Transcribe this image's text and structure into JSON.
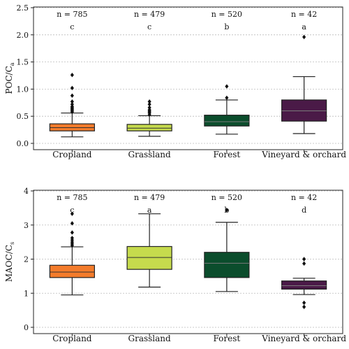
{
  "chart_data": [
    {
      "type": "box",
      "ylabel_main": "POC/C",
      "ylabel_sub": "a",
      "xlabel": "",
      "ylim": [
        0,
        2.5
      ],
      "yticks": [
        0.0,
        0.5,
        1.0,
        1.5,
        2.0,
        2.5
      ],
      "ytick_labels": [
        "0.0",
        "0.5",
        "1.0",
        "1.5",
        "2.0",
        "2.5"
      ],
      "grid": "horizontal dotted",
      "categories": [
        "Cropland",
        "Grassland",
        "Forest",
        "Vineyard & orchard"
      ],
      "n_labels": [
        "n = 785",
        "n = 479",
        "n = 520",
        "n = 42"
      ],
      "letters": [
        "c",
        "c",
        "b",
        "a"
      ],
      "colors": [
        "#f47c2c",
        "#c6db4d",
        "#0b4d2c",
        "#4a1a47"
      ],
      "boxes": [
        {
          "whisker_low": 0.12,
          "q1": 0.23,
          "median": 0.29,
          "q3": 0.36,
          "whisker_high": 0.56,
          "outliers": [
            0.58,
            0.6,
            0.62,
            0.64,
            0.66,
            0.68,
            0.72,
            0.77,
            0.88,
            1.02,
            1.26
          ]
        },
        {
          "whisker_low": 0.13,
          "q1": 0.23,
          "median": 0.28,
          "q3": 0.35,
          "whisker_high": 0.51,
          "outliers": [
            0.53,
            0.56,
            0.58,
            0.6,
            0.62,
            0.66,
            0.72,
            0.77
          ]
        },
        {
          "whisker_low": 0.17,
          "q1": 0.32,
          "median": 0.4,
          "q3": 0.52,
          "whisker_high": 0.8,
          "outliers": [
            0.84,
            1.05
          ]
        },
        {
          "whisker_low": 0.18,
          "q1": 0.41,
          "median": 0.6,
          "q3": 0.8,
          "whisker_high": 1.23,
          "outliers": [
            1.96
          ]
        }
      ]
    },
    {
      "type": "box",
      "ylabel_main": "MAOC/C",
      "ylabel_sub": "s",
      "xlabel": "",
      "ylim": [
        0,
        4
      ],
      "yticks": [
        0,
        1,
        2,
        3,
        4
      ],
      "ytick_labels": [
        "0",
        "1",
        "2",
        "3",
        "4"
      ],
      "grid": "horizontal dotted",
      "categories": [
        "Cropland",
        "Grassland",
        "Forest",
        "Vineyard & orchard"
      ],
      "n_labels": [
        "n = 785",
        "n = 479",
        "n = 520",
        "n = 42"
      ],
      "letters": [
        "c",
        "a",
        "b",
        "d"
      ],
      "colors": [
        "#f47c2c",
        "#c6db4d",
        "#0b4d2c",
        "#4a1a47"
      ],
      "boxes": [
        {
          "whisker_low": 0.95,
          "q1": 1.46,
          "median": 1.62,
          "q3": 1.82,
          "whisker_high": 2.36,
          "outliers": [
            2.4,
            2.45,
            2.5,
            2.56,
            2.62,
            2.78,
            3.05,
            3.33
          ]
        },
        {
          "whisker_low": 1.18,
          "q1": 1.7,
          "median": 2.05,
          "q3": 2.37,
          "whisker_high": 3.33,
          "outliers": []
        },
        {
          "whisker_low": 1.05,
          "q1": 1.46,
          "median": 1.88,
          "q3": 2.2,
          "whisker_high": 3.08,
          "outliers": [
            3.44
          ]
        },
        {
          "whisker_low": 0.96,
          "q1": 1.12,
          "median": 1.22,
          "q3": 1.36,
          "whisker_high": 1.44,
          "outliers": [
            0.6,
            0.72,
            1.87,
            2.0
          ]
        }
      ]
    }
  ]
}
